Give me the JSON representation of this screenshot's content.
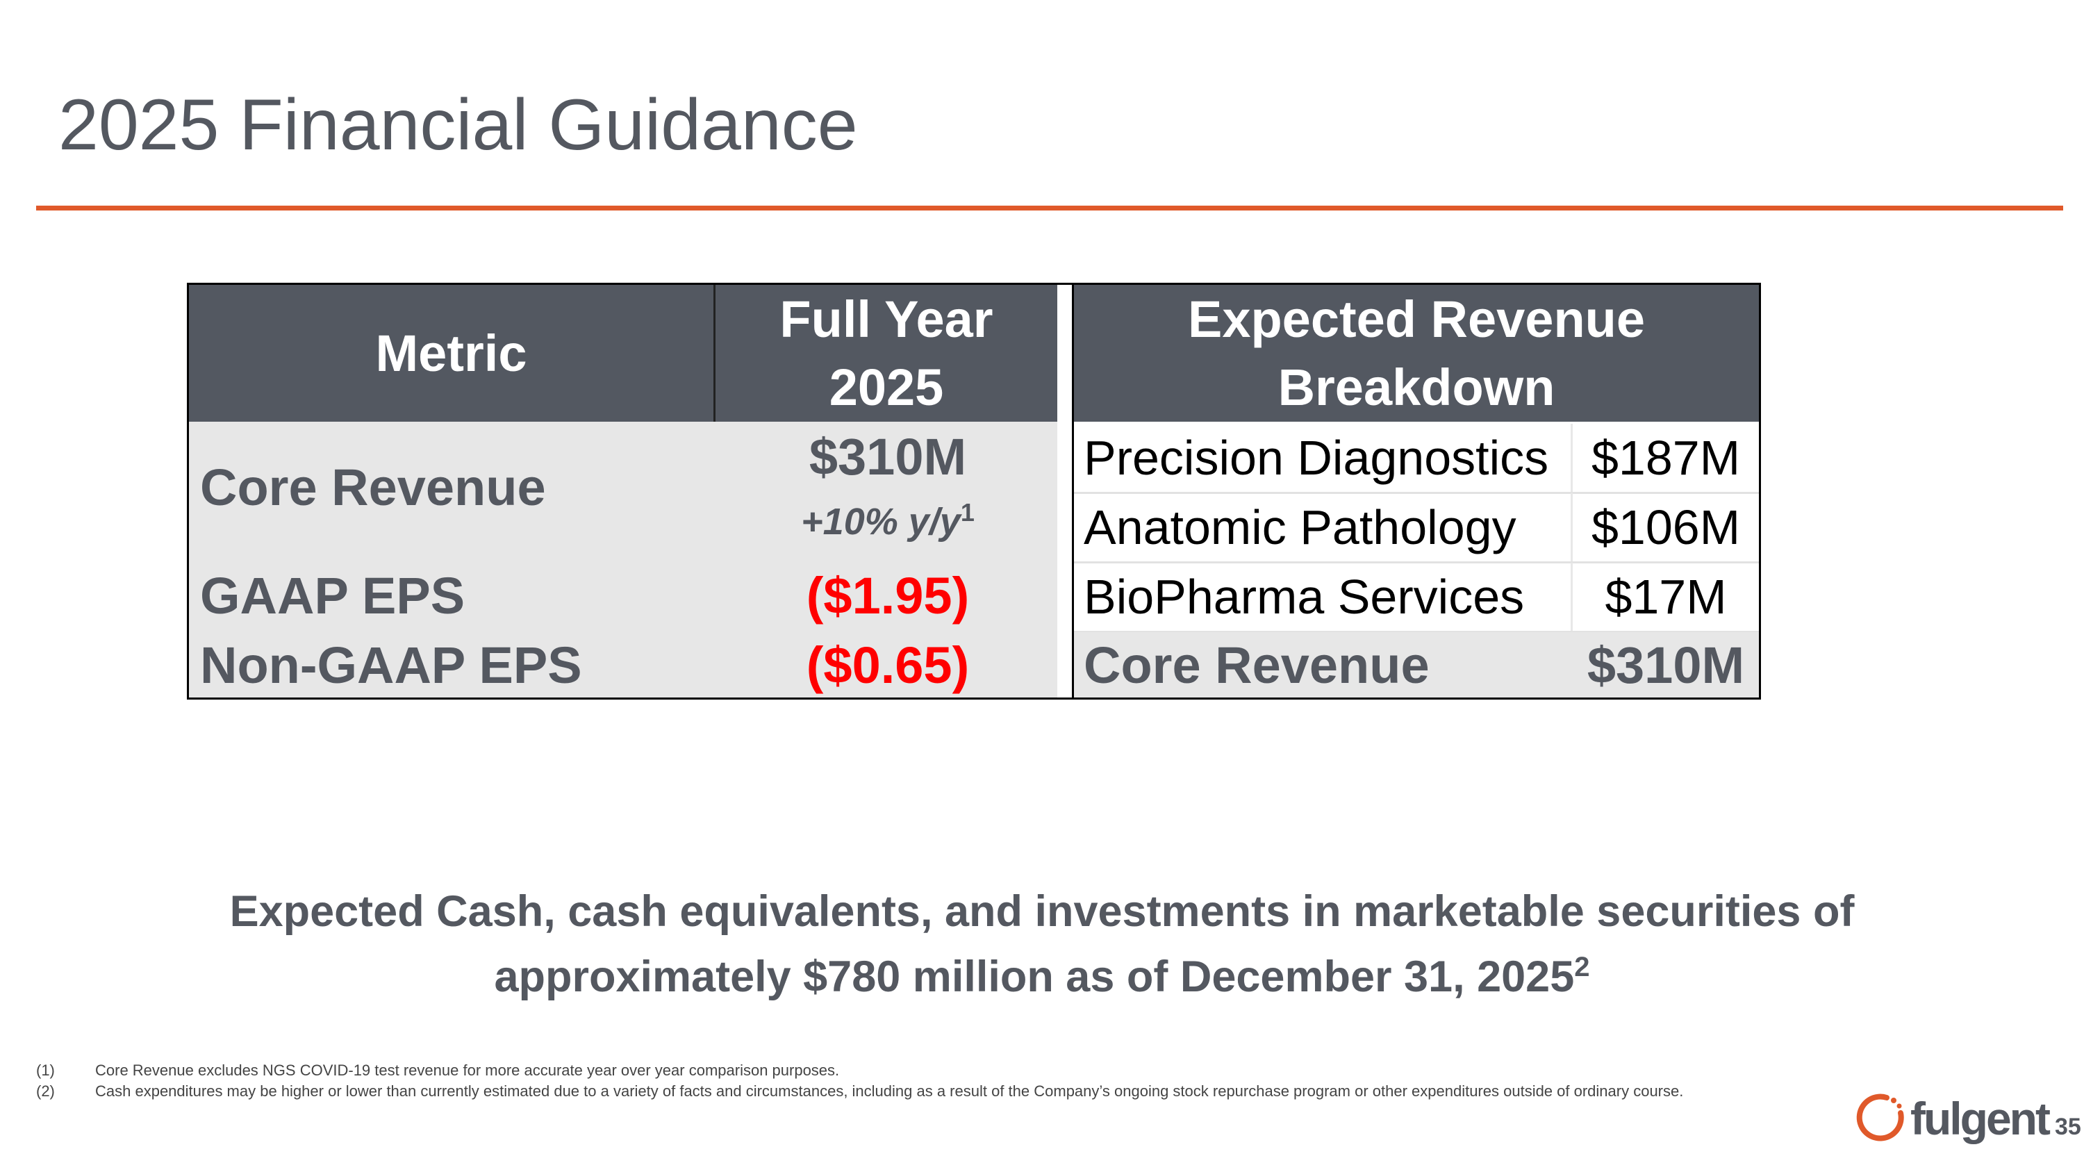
{
  "accent_color": "#e0592a",
  "title": "2025 Financial Guidance",
  "metric_table": {
    "headers": [
      "Metric",
      "Full Year",
      "2025"
    ],
    "rows": [
      {
        "label": "Core Revenue",
        "value": "$310M",
        "sub": "+10% y/y",
        "footnote": "1"
      },
      {
        "label": "GAAP EPS",
        "value": "($1.95)"
      },
      {
        "label": "Non-GAAP EPS",
        "value": "($0.65)"
      }
    ],
    "negative_color": "#ff0000"
  },
  "breakdown_table": {
    "header_line1": "Expected Revenue",
    "header_line2": "Breakdown",
    "rows": [
      {
        "name": "Precision Diagnostics",
        "value": "$187M"
      },
      {
        "name": "Anatomic Pathology",
        "value": "$106M"
      },
      {
        "name": "BioPharma Services",
        "value": "$17M"
      }
    ],
    "total": {
      "name": "Core Revenue",
      "value": "$310M"
    }
  },
  "cash_statement": {
    "line1": "Expected Cash, cash equivalents, and investments in marketable securities of",
    "line2": "approximately $780 million as of December 31, 2025",
    "footnote": "2"
  },
  "footnotes": [
    {
      "num": "(1)",
      "text": "Core Revenue excludes NGS COVID-19 test revenue for more accurate year over year comparison purposes."
    },
    {
      "num": "(2)",
      "text": "Cash expenditures may be higher or lower than currently estimated due to a variety of facts and circumstances, including as a result of the Company’s ongoing stock repurchase program or other expenditures outside of ordinary course."
    }
  ],
  "logo": {
    "text": "fulgent",
    "icon": "fulgent-ring-icon"
  },
  "page_number": "35"
}
